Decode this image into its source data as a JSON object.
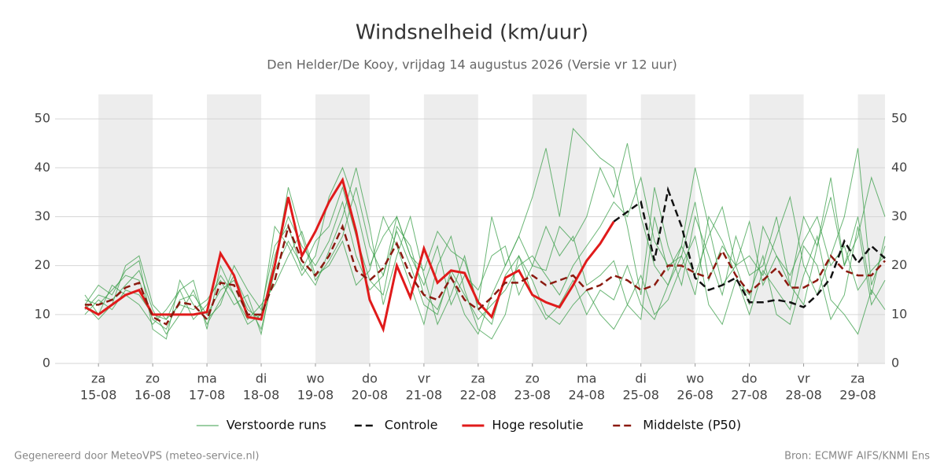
{
  "chart_data": {
    "type": "line",
    "title": "Windsnelheid (km/uur)",
    "subtitle": "Den Helder/De Kooy, vrijdag 14 augustus 2026 (Versie vr 12 uur)",
    "footer_left": "Gegenereerd door MeteoVPS (meteo-service.nl)",
    "footer_right": "Bron: ECMWF AIFS/KNMI Ens",
    "xlim": [
      14.2,
      29.5
    ],
    "ylim": [
      0,
      55
    ],
    "yticks": [
      0,
      10,
      20,
      30,
      40,
      50
    ],
    "grid": true,
    "xticks": [
      {
        "value": 15,
        "label": "za"
      },
      {
        "value": 16,
        "label": "zo"
      },
      {
        "value": 17,
        "label": "ma"
      },
      {
        "value": 18,
        "label": "di"
      },
      {
        "value": 19,
        "label": "wo"
      },
      {
        "value": 20,
        "label": "do"
      },
      {
        "value": 21,
        "label": "vr"
      },
      {
        "value": 22,
        "label": "za"
      },
      {
        "value": 23,
        "label": "zo"
      },
      {
        "value": 24,
        "label": "ma"
      },
      {
        "value": 25,
        "label": "di"
      },
      {
        "value": 26,
        "label": "wo"
      },
      {
        "value": 27,
        "label": "do"
      },
      {
        "value": 28,
        "label": "vr"
      },
      {
        "value": 29,
        "label": "za"
      }
    ],
    "xtick_dates": [
      "15-08",
      "16-08",
      "17-08",
      "18-08",
      "19-08",
      "20-08",
      "21-08",
      "22-08",
      "23-08",
      "24-08",
      "25-08",
      "26-08",
      "27-08",
      "28-08",
      "29-08"
    ],
    "x": [
      14.75,
      15,
      15.25,
      15.5,
      15.75,
      16,
      16.25,
      16.5,
      16.75,
      17,
      17.25,
      17.5,
      17.75,
      18,
      18.25,
      18.5,
      18.75,
      19,
      19.25,
      19.5,
      19.75,
      20,
      20.25,
      20.5,
      20.75,
      21,
      21.25,
      21.5,
      21.75,
      22,
      22.25,
      22.5,
      22.75,
      23,
      23.25,
      23.5,
      23.75,
      24,
      24.25,
      24.5,
      24.75,
      25,
      25.25,
      25.5,
      25.75,
      26,
      26.25,
      26.5,
      26.75,
      27,
      27.25,
      27.5,
      27.75,
      28,
      28.25,
      28.5,
      28.75,
      29,
      29.25,
      29.5
    ],
    "series": [
      {
        "name": "Verstoorde runs",
        "color": "#3a9e48",
        "ensemble": [
          [
            13,
            12,
            15,
            18,
            17,
            9,
            7,
            13,
            14,
            10,
            15,
            17,
            11,
            9,
            22,
            30,
            24,
            20,
            25,
            33,
            22,
            15,
            18,
            27,
            20,
            12,
            10,
            19,
            14,
            9,
            12,
            15,
            20,
            22,
            18,
            14,
            20,
            24,
            28,
            33,
            30,
            38,
            25,
            20,
            22,
            33,
            17,
            24,
            20,
            29,
            16,
            22,
            18,
            25,
            30,
            20,
            24,
            15,
            19,
            22
          ],
          [
            11,
            14,
            13,
            16,
            19,
            11,
            6,
            10,
            15,
            8,
            13,
            18,
            12,
            7,
            19,
            25,
            20,
            16,
            23,
            30,
            40,
            28,
            12,
            22,
            30,
            18,
            8,
            14,
            22,
            11,
            8,
            18,
            22,
            14,
            9,
            12,
            17,
            10,
            15,
            13,
            20,
            12,
            9,
            16,
            22,
            14,
            30,
            25,
            18,
            10,
            19,
            15,
            11,
            24,
            20,
            9,
            14,
            28,
            12,
            17
          ],
          [
            14,
            10,
            16,
            14,
            12,
            8,
            11,
            15,
            9,
            12,
            18,
            14,
            8,
            10,
            28,
            24,
            18,
            22,
            34,
            40,
            32,
            20,
            26,
            30,
            22,
            16,
            24,
            12,
            18,
            15,
            22,
            24,
            14,
            20,
            19,
            28,
            25,
            30,
            40,
            34,
            45,
            30,
            20,
            16,
            24,
            18,
            26,
            32,
            20,
            12,
            28,
            22,
            16,
            30,
            24,
            34,
            20,
            26,
            38,
            30
          ],
          [
            12,
            9,
            12,
            20,
            22,
            12,
            9,
            15,
            17,
            7,
            20,
            14,
            9,
            12,
            16,
            22,
            27,
            18,
            20,
            25,
            16,
            19,
            30,
            24,
            16,
            8,
            20,
            26,
            15,
            7,
            5,
            10,
            22,
            17,
            10,
            8,
            12,
            15,
            10,
            7,
            12,
            18,
            10,
            13,
            20,
            26,
            12,
            8,
            17,
            14,
            22,
            10,
            8,
            18,
            26,
            13,
            10,
            6,
            15,
            11
          ],
          [
            10,
            13,
            11,
            15,
            14,
            10,
            9,
            12,
            11,
            13,
            17,
            12,
            14,
            6,
            20,
            36,
            26,
            17,
            21,
            26,
            36,
            24,
            18,
            30,
            22,
            19,
            27,
            23,
            21,
            12,
            30,
            20,
            26,
            34,
            44,
            30,
            48,
            45,
            42,
            40,
            28,
            14,
            36,
            24,
            16,
            30,
            22,
            14,
            26,
            18,
            20,
            30,
            16,
            12,
            24,
            38,
            20,
            30,
            14,
            26
          ],
          [
            12,
            16,
            14,
            19,
            21,
            7,
            5,
            17,
            12,
            9,
            12,
            20,
            15,
            11,
            24,
            28,
            19,
            25,
            28,
            36,
            26,
            17,
            14,
            28,
            24,
            14,
            11,
            18,
            10,
            6,
            14,
            20,
            26,
            20,
            28,
            22,
            26,
            16,
            18,
            21,
            12,
            9,
            30,
            19,
            24,
            40,
            28,
            16,
            20,
            22,
            18,
            26,
            34,
            20,
            14,
            22,
            30,
            44,
            16,
            24
          ]
        ]
      },
      {
        "name": "Controle",
        "color": "#111111",
        "dash": true,
        "values": [
          null,
          null,
          null,
          null,
          null,
          null,
          null,
          null,
          null,
          null,
          null,
          null,
          null,
          null,
          null,
          null,
          null,
          null,
          null,
          null,
          null,
          null,
          null,
          null,
          null,
          null,
          null,
          null,
          null,
          null,
          null,
          null,
          null,
          null,
          null,
          null,
          null,
          null,
          null,
          29,
          31,
          33,
          21,
          35.5,
          28,
          17.5,
          15,
          16,
          17.5,
          12.5,
          12.5,
          13,
          12.5,
          11.5,
          14,
          17.5,
          25,
          20.5,
          24,
          21.5
        ]
      },
      {
        "name": "Hoge resolutie",
        "color": "#e01b1b",
        "values": [
          11.5,
          10,
          12,
          14,
          15,
          10,
          10,
          10,
          10,
          10.5,
          22.5,
          18,
          9.5,
          9,
          20,
          34,
          22,
          27,
          33,
          37.5,
          27,
          13,
          7,
          20,
          13.5,
          23.5,
          16.5,
          19,
          18.5,
          12.5,
          9.5,
          17.5,
          19,
          14,
          12.5,
          11.5,
          16,
          21,
          24.5,
          29,
          null,
          null,
          null,
          null,
          null,
          null,
          null,
          null,
          null,
          null,
          null,
          null,
          null,
          null,
          null,
          null,
          null,
          null,
          null,
          null
        ]
      },
      {
        "name": "Middelste (P50)",
        "color": "#8b1a10",
        "dash": true,
        "values": [
          12,
          12,
          13,
          15.5,
          16.5,
          9.5,
          8,
          12.5,
          12,
          9,
          16.5,
          16,
          10,
          10,
          17,
          28,
          21,
          18,
          22,
          28,
          19,
          17,
          19.5,
          24.5,
          18,
          14,
          13,
          17.5,
          13,
          11,
          13.5,
          16.5,
          16.5,
          18,
          16,
          17,
          18,
          15,
          16,
          18,
          17,
          15,
          16,
          20,
          20,
          18.5,
          17.5,
          23,
          18,
          14.5,
          17,
          19.5,
          15.5,
          15.5,
          17,
          22,
          19,
          18,
          18,
          21
        ]
      }
    ]
  }
}
